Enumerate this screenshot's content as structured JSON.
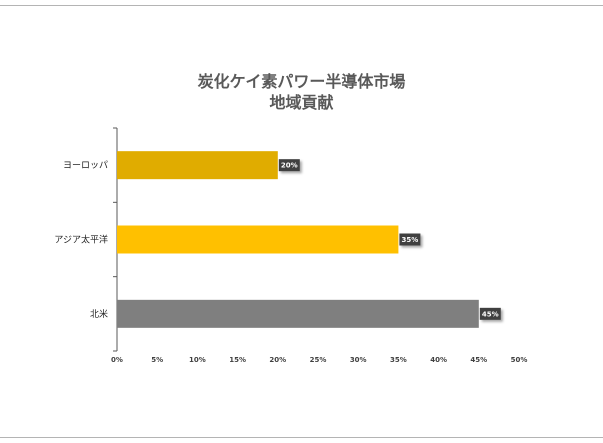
{
  "chart_data": {
    "type": "bar",
    "orientation": "horizontal",
    "title": [
      "炭化ケイ素パワー半導体市場",
      "地域貢献"
    ],
    "categories": [
      "ヨーロッパ",
      "アジア太平洋",
      "北米"
    ],
    "values": [
      20,
      35,
      45
    ],
    "data_labels": [
      "20%",
      "35%",
      "45%"
    ],
    "colors": [
      "#e0ac00",
      "#ffc000",
      "#7f7f7f"
    ],
    "xlim": [
      0,
      50
    ],
    "xticks": [
      "0%",
      "5%",
      "10%",
      "15%",
      "20%",
      "25%",
      "30%",
      "35%",
      "40%",
      "45%",
      "50%"
    ],
    "xlabel": "",
    "ylabel": "",
    "grid": false,
    "legend": "none"
  }
}
